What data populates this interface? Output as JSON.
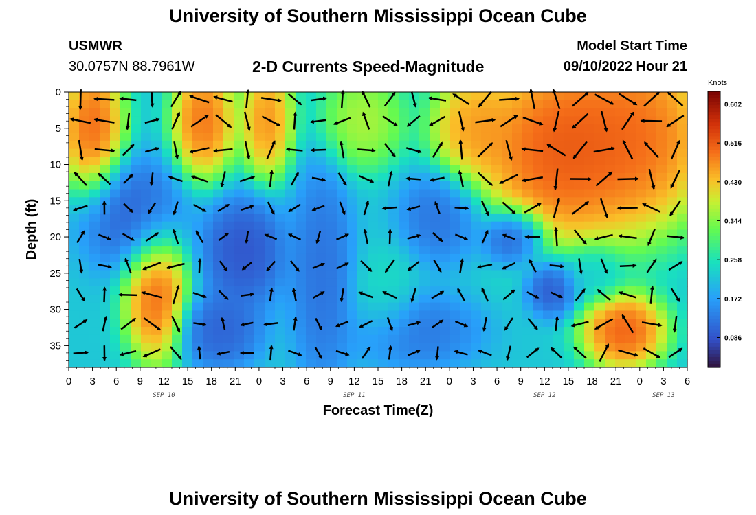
{
  "header": {
    "title": "University of Southern Mississippi Ocean Cube",
    "station": "USMWR",
    "location": "30.0757N  88.7961W",
    "model_start_label": "Model Start Time",
    "model_start_value": "09/10/2022 Hour 21",
    "subtitle": "2-D Currents Speed-Magnitude"
  },
  "footer": {
    "title": "University of Southern Mississippi Ocean Cube"
  },
  "chart_data": {
    "type": "heatmap",
    "title": "2-D Currents Speed-Magnitude",
    "xlabel": "Forecast Time(Z)",
    "ylabel": "Depth (ft)",
    "x_tick_labels": [
      "0",
      "3",
      "6",
      "9",
      "12",
      "15",
      "18",
      "21",
      "0",
      "3",
      "6",
      "9",
      "12",
      "15",
      "18",
      "21",
      "0",
      "3",
      "6",
      "9",
      "12",
      "15",
      "18",
      "21",
      "0",
      "3",
      "6"
    ],
    "x_hours": [
      0,
      3,
      6,
      9,
      12,
      15,
      18,
      21,
      24,
      27,
      30,
      33,
      36,
      39,
      42,
      45,
      48,
      51,
      54,
      57,
      60,
      63,
      66,
      69,
      72,
      75,
      78
    ],
    "xlim": [
      0,
      78
    ],
    "date_labels": [
      {
        "label": "SEP 10",
        "hour": 12
      },
      {
        "label": "SEP 11",
        "hour": 36
      },
      {
        "label": "SEP 12",
        "hour": 60
      },
      {
        "label": "SEP 13",
        "hour": 75
      }
    ],
    "y_ticks": [
      0,
      5,
      10,
      15,
      20,
      25,
      30,
      35
    ],
    "ylim": [
      0,
      38
    ],
    "y_inverted": true,
    "colorbar": {
      "label": "Knots",
      "ticks": [
        0.602,
        0.516,
        0.43,
        0.344,
        0.258,
        0.172,
        0.086
      ],
      "range": [
        0.02,
        0.63
      ]
    },
    "speed_blobs": [
      {
        "hour": 3,
        "depth": 5,
        "rh": 3,
        "rd": 7,
        "value": 0.56
      },
      {
        "hour": 17,
        "depth": 4,
        "rh": 3,
        "rd": 6,
        "value": 0.55
      },
      {
        "hour": 25,
        "depth": 4,
        "rh": 2.5,
        "rd": 6,
        "value": 0.52
      },
      {
        "hour": 37,
        "depth": 4,
        "rh": 4,
        "rd": 5,
        "value": 0.4
      },
      {
        "hour": 51,
        "depth": 5,
        "rh": 4,
        "rd": 6,
        "value": 0.5
      },
      {
        "hour": 62,
        "depth": 8,
        "rh": 8,
        "rd": 10,
        "value": 0.58
      },
      {
        "hour": 72,
        "depth": 6,
        "rh": 7,
        "rd": 10,
        "value": 0.55
      },
      {
        "hour": 11,
        "depth": 28,
        "rh": 3,
        "rd": 7,
        "value": 0.56
      },
      {
        "hour": 70,
        "depth": 33,
        "rh": 4,
        "rd": 4,
        "value": 0.57
      },
      {
        "hour": 8,
        "depth": 17,
        "rh": 5,
        "rd": 6,
        "value": 0.08
      },
      {
        "hour": 22,
        "depth": 22,
        "rh": 4,
        "rd": 6,
        "value": 0.06
      },
      {
        "hour": 32,
        "depth": 25,
        "rh": 3,
        "rd": 12,
        "value": 0.1
      },
      {
        "hour": 47,
        "depth": 17,
        "rh": 4,
        "rd": 5,
        "value": 0.1
      },
      {
        "hour": 56,
        "depth": 20,
        "rh": 3,
        "rd": 3,
        "value": 0.05
      },
      {
        "hour": 61,
        "depth": 27,
        "rh": 2.5,
        "rd": 3,
        "value": 0.06
      },
      {
        "hour": 19,
        "depth": 33,
        "rh": 4,
        "rd": 4,
        "value": 0.08
      },
      {
        "hour": 44,
        "depth": 33,
        "rh": 6,
        "rd": 4,
        "value": 0.11
      },
      {
        "hour": 40,
        "depth": 28,
        "rh": 3,
        "rd": 5,
        "value": 0.25
      },
      {
        "hour": 66,
        "depth": 25,
        "rh": 3,
        "rd": 3,
        "value": 0.22
      }
    ],
    "vector_hours": [
      1.5,
      4.5,
      7.5,
      10.5,
      13.5,
      16.5,
      19.5,
      22.5,
      25.5,
      28.5,
      31.5,
      34.5,
      37.5,
      40.5,
      43.5,
      46.5,
      49.5,
      52.5,
      55.5,
      58.5,
      61.5,
      64.5,
      67.5,
      70.5,
      73.5,
      76.5
    ],
    "vector_depths": [
      1,
      4,
      8,
      12,
      16,
      20,
      24,
      28,
      32,
      36
    ],
    "vectors_note": "direction and length (speed) drawn per grid cell"
  }
}
